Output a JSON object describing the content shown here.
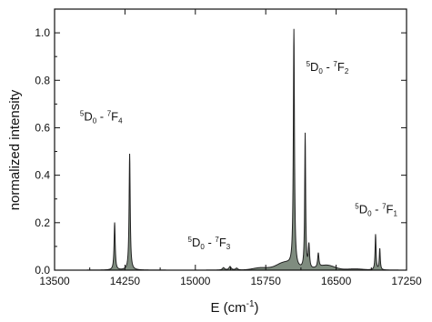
{
  "chart_data": {
    "type": "line",
    "title": "",
    "xlabel": {
      "prefix": "E (cm",
      "sup": "-1",
      "suffix": ")"
    },
    "ylabel": "normalized intensity",
    "xlim": [
      13500,
      17250
    ],
    "ylim": [
      0,
      1.1
    ],
    "x_ticks": [
      13500,
      14250,
      15000,
      15750,
      16500,
      17250
    ],
    "y_ticks": [
      0.0,
      0.2,
      0.4,
      0.6,
      0.8,
      1.0
    ],
    "x_tick_labels": [
      "13500",
      "14250",
      "15000",
      "15750",
      "16500",
      "17250"
    ],
    "y_tick_labels": [
      "0.0",
      "0.2",
      "0.4",
      "0.6",
      "0.8",
      "1.0"
    ],
    "fill": true,
    "series": [
      {
        "peaks": [
          {
            "x": 14140,
            "y": 0.2,
            "w": 7
          },
          {
            "x": 14300,
            "y": 0.49,
            "w": 7
          },
          {
            "x": 15300,
            "y": 0.01,
            "w": 14
          },
          {
            "x": 15370,
            "y": 0.015,
            "w": 14
          },
          {
            "x": 15440,
            "y": 0.008,
            "w": 14
          },
          {
            "x": 16050,
            "y": 1.0,
            "w": 7
          },
          {
            "x": 16170,
            "y": 0.57,
            "w": 6
          },
          {
            "x": 16210,
            "y": 0.1,
            "w": 8
          },
          {
            "x": 16310,
            "y": 0.06,
            "w": 8
          },
          {
            "x": 16920,
            "y": 0.15,
            "w": 6
          },
          {
            "x": 16965,
            "y": 0.09,
            "w": 6
          }
        ],
        "baseline": [
          {
            "x": 15700,
            "y": 0.01
          },
          {
            "x": 15950,
            "y": 0.03
          },
          {
            "x": 16400,
            "y": 0.02
          },
          {
            "x": 16700,
            "y": 0.005
          }
        ]
      }
    ],
    "annotations": [
      {
        "id": "f4",
        "sup": "5",
        "main": "D",
        "sub": "0",
        "dash": " - ",
        "sup2": "7",
        "main2": "F",
        "sub2": "4",
        "x": 13770,
        "y": 0.63
      },
      {
        "id": "f3",
        "sup": "5",
        "main": "D",
        "sub": "0",
        "dash": " - ",
        "sup2": "7",
        "main2": "F",
        "sub2": "3",
        "x": 14920,
        "y": 0.1
      },
      {
        "id": "f2",
        "sup": "5",
        "main": "D",
        "sub": "0",
        "dash": " - ",
        "sup2": "7",
        "main2": "F",
        "sub2": "2",
        "x": 16180,
        "y": 0.84
      },
      {
        "id": "f1",
        "sup": "5",
        "main": "D",
        "sub": "0",
        "dash": " - ",
        "sup2": "7",
        "main2": "F",
        "sub2": "1",
        "x": 16700,
        "y": 0.24
      }
    ],
    "colors": {
      "line": "#222222",
      "fill": "#7f8c7f",
      "axis": "#111111"
    }
  }
}
